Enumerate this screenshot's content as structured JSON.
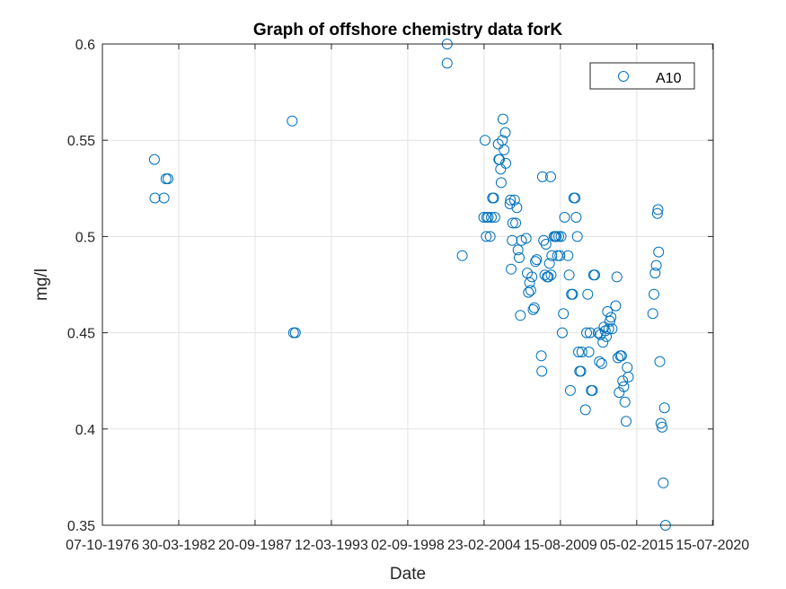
{
  "chart_data": {
    "type": "scatter",
    "title": "Graph of offshore chemistry data forK",
    "xlabel": "Date",
    "ylabel": "mg/l",
    "x_axis": {
      "ticks": [
        "07-10-1976",
        "30-03-1982",
        "20-09-1987",
        "12-03-1993",
        "02-09-1998",
        "23-02-2004",
        "15-08-2009",
        "05-02-2015",
        "15-07-2020"
      ],
      "tick_labels": [
        "07-10-1976",
        "30-03-1982",
        "20-09-1987",
        "12-03-1993",
        "02-09-1998",
        "23-02-2004",
        "15-08-2009",
        "05-02-2015",
        "15-07-2020"
      ],
      "range": [
        "07-10-1976",
        "01-08-2020"
      ]
    },
    "y_axis": {
      "ticks": [
        0.35,
        0.4,
        0.45,
        0.5,
        0.55,
        0.6
      ],
      "tick_labels": [
        "0.35",
        "0.4",
        "0.45",
        "0.5",
        "0.55",
        "0.6"
      ],
      "range": [
        0.35,
        0.6
      ]
    },
    "grid": true,
    "legend_position": "top-right",
    "series": [
      {
        "name": "A10",
        "color": "#0072BD",
        "marker": "open-circle",
        "points": [
          [
            "1980-07-01",
            0.54
          ],
          [
            "1980-07-15",
            0.52
          ],
          [
            "1981-03-10",
            0.52
          ],
          [
            "1981-05-01",
            0.53
          ],
          [
            "1981-06-20",
            0.53
          ],
          [
            "1990-05-20",
            0.56
          ],
          [
            "1990-06-25",
            0.45
          ],
          [
            "1990-08-10",
            0.45
          ],
          [
            "2001-07-01",
            0.6
          ],
          [
            "2001-07-01",
            0.59
          ],
          [
            "2002-08-01",
            0.49
          ],
          [
            "2004-02-15",
            0.51
          ],
          [
            "2004-03-20",
            0.55
          ],
          [
            "2004-04-20",
            0.5
          ],
          [
            "2004-05-01",
            0.51
          ],
          [
            "2004-06-10",
            0.51
          ],
          [
            "2004-08-01",
            0.5
          ],
          [
            "2004-09-01",
            0.51
          ],
          [
            "2004-10-01",
            0.52
          ],
          [
            "2004-11-01",
            0.52
          ],
          [
            "2004-12-01",
            0.51
          ],
          [
            "2005-03-01",
            0.548
          ],
          [
            "2005-03-15",
            0.54
          ],
          [
            "2005-04-01",
            0.54
          ],
          [
            "2005-05-01",
            0.535
          ],
          [
            "2005-05-15",
            0.528
          ],
          [
            "2005-06-15",
            0.55
          ],
          [
            "2005-07-01",
            0.561
          ],
          [
            "2005-08-01",
            0.545
          ],
          [
            "2005-09-01",
            0.554
          ],
          [
            "2005-09-15",
            0.538
          ],
          [
            "2006-01-01",
            0.517
          ],
          [
            "2006-01-15",
            0.519
          ],
          [
            "2006-02-01",
            0.483
          ],
          [
            "2006-03-01",
            0.498
          ],
          [
            "2006-03-15",
            0.507
          ],
          [
            "2006-05-01",
            0.519
          ],
          [
            "2006-06-01",
            0.507
          ],
          [
            "2006-07-01",
            0.515
          ],
          [
            "2006-08-01",
            0.493
          ],
          [
            "2006-09-01",
            0.489
          ],
          [
            "2006-10-01",
            0.459
          ],
          [
            "2006-11-01",
            0.498
          ],
          [
            "2007-03-01",
            0.499
          ],
          [
            "2007-04-01",
            0.481
          ],
          [
            "2007-05-01",
            0.471
          ],
          [
            "2007-06-01",
            0.476
          ],
          [
            "2007-07-01",
            0.472
          ],
          [
            "2007-08-01",
            0.479
          ],
          [
            "2007-09-01",
            0.462
          ],
          [
            "2007-10-01",
            0.463
          ],
          [
            "2007-11-01",
            0.487
          ],
          [
            "2007-12-01",
            0.488
          ],
          [
            "2008-04-01",
            0.438
          ],
          [
            "2008-04-15",
            0.43
          ],
          [
            "2008-05-01",
            0.531
          ],
          [
            "2008-06-01",
            0.498
          ],
          [
            "2008-07-01",
            0.48
          ],
          [
            "2008-08-01",
            0.496
          ],
          [
            "2008-09-01",
            0.479
          ],
          [
            "2008-10-01",
            0.479
          ],
          [
            "2008-11-01",
            0.486
          ],
          [
            "2008-12-01",
            0.531
          ],
          [
            "2008-12-15",
            0.48
          ],
          [
            "2009-01-01",
            0.49
          ],
          [
            "2009-03-01",
            0.5
          ],
          [
            "2009-04-01",
            0.5
          ],
          [
            "2009-05-01",
            0.5
          ],
          [
            "2009-06-01",
            0.49
          ],
          [
            "2009-07-01",
            0.5
          ],
          [
            "2009-08-01",
            0.49
          ],
          [
            "2009-09-01",
            0.5
          ],
          [
            "2009-10-01",
            0.45
          ],
          [
            "2009-11-01",
            0.46
          ],
          [
            "2009-12-01",
            0.51
          ],
          [
            "2010-03-01",
            0.49
          ],
          [
            "2010-04-01",
            0.48
          ],
          [
            "2010-05-01",
            0.42
          ],
          [
            "2010-06-01",
            0.47
          ],
          [
            "2010-07-01",
            0.47
          ],
          [
            "2010-08-01",
            0.52
          ],
          [
            "2010-09-01",
            0.52
          ],
          [
            "2010-10-01",
            0.51
          ],
          [
            "2010-11-01",
            0.5
          ],
          [
            "2010-12-01",
            0.44
          ],
          [
            "2011-01-01",
            0.43
          ],
          [
            "2011-02-01",
            0.43
          ],
          [
            "2011-03-01",
            0.44
          ],
          [
            "2011-06-01",
            0.41
          ],
          [
            "2011-07-01",
            0.45
          ],
          [
            "2011-08-01",
            0.47
          ],
          [
            "2011-09-01",
            0.44
          ],
          [
            "2011-10-01",
            0.45
          ],
          [
            "2011-11-01",
            0.42
          ],
          [
            "2011-12-01",
            0.42
          ],
          [
            "2012-01-01",
            0.48
          ],
          [
            "2012-02-01",
            0.48
          ],
          [
            "2012-05-01",
            0.45
          ],
          [
            "2012-06-01",
            0.435
          ],
          [
            "2012-07-01",
            0.449
          ],
          [
            "2012-08-01",
            0.434
          ],
          [
            "2012-09-01",
            0.445
          ],
          [
            "2012-10-01",
            0.453
          ],
          [
            "2012-11-01",
            0.451
          ],
          [
            "2012-12-01",
            0.448
          ],
          [
            "2013-01-01",
            0.461
          ],
          [
            "2013-02-01",
            0.452
          ],
          [
            "2013-03-01",
            0.456
          ],
          [
            "2013-04-01",
            0.458
          ],
          [
            "2013-05-01",
            0.452
          ],
          [
            "2013-08-01",
            0.464
          ],
          [
            "2013-09-01",
            0.479
          ],
          [
            "2013-10-01",
            0.437
          ],
          [
            "2013-11-01",
            0.419
          ],
          [
            "2013-12-01",
            0.438
          ],
          [
            "2014-01-01",
            0.438
          ],
          [
            "2014-02-01",
            0.425
          ],
          [
            "2014-03-01",
            0.422
          ],
          [
            "2014-04-01",
            0.414
          ],
          [
            "2014-05-01",
            0.404
          ],
          [
            "2014-06-01",
            0.432
          ],
          [
            "2014-07-01",
            0.427
          ],
          [
            "2016-04-01",
            0.46
          ],
          [
            "2016-05-01",
            0.47
          ],
          [
            "2016-06-01",
            0.481
          ],
          [
            "2016-07-01",
            0.485
          ],
          [
            "2016-08-01",
            0.512
          ],
          [
            "2016-08-15",
            0.514
          ],
          [
            "2016-09-01",
            0.492
          ],
          [
            "2016-10-01",
            0.435
          ],
          [
            "2016-11-01",
            0.403
          ],
          [
            "2016-12-01",
            0.401
          ],
          [
            "2017-01-01",
            0.372
          ],
          [
            "2017-02-01",
            0.411
          ],
          [
            "2017-03-01",
            0.35
          ]
        ]
      }
    ]
  }
}
